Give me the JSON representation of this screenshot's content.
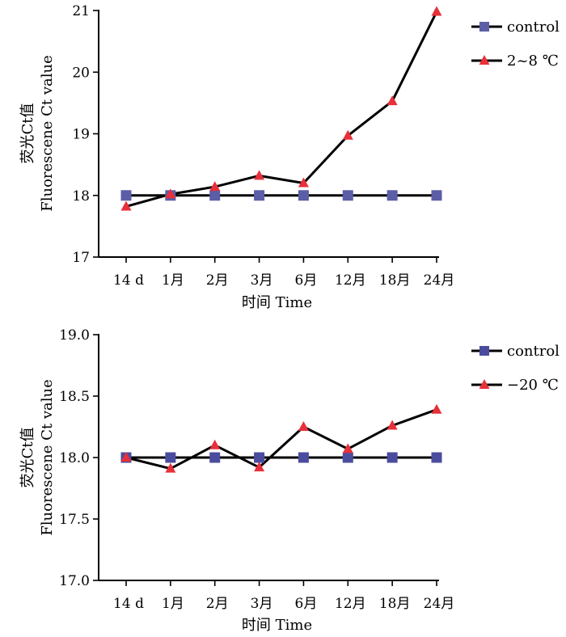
{
  "chart_data": [
    {
      "type": "line",
      "categories": [
        "14 d",
        "1月",
        "2月",
        "3月",
        "6月",
        "12月",
        "18月",
        "24月"
      ],
      "xlabel": "时间  Time",
      "ylabel_cn": "荧光Ct值",
      "ylabel_en": "Fluorescene Ct value",
      "ylim": [
        17,
        21
      ],
      "yticks": [
        "17",
        "18",
        "19",
        "20",
        "21"
      ],
      "grid": false,
      "legend_position": "top-right",
      "series": [
        {
          "name": "control",
          "marker": "square",
          "color": "#5b5ea6",
          "values": [
            18,
            18,
            18,
            18,
            18,
            18,
            18,
            18
          ]
        },
        {
          "name": "2~8 ℃",
          "marker": "triangle",
          "color": "#e8303a",
          "values": [
            17.82,
            18.02,
            18.14,
            18.32,
            18.2,
            18.97,
            19.53,
            20.98
          ]
        }
      ]
    },
    {
      "type": "line",
      "categories": [
        "14 d",
        "1月",
        "2月",
        "3月",
        "6月",
        "12月",
        "18月",
        "24月"
      ],
      "xlabel": "时间  Time",
      "ylabel_cn": "荧光Ct值",
      "ylabel_en": "Fluorescene Ct value",
      "ylim": [
        17.0,
        19.0
      ],
      "yticks": [
        "17.0",
        "17.5",
        "18.0",
        "18.5",
        "19.0"
      ],
      "grid": false,
      "legend_position": "top-right",
      "series": [
        {
          "name": "control",
          "marker": "square",
          "color": "#4a4c9e",
          "values": [
            18,
            18,
            18,
            18,
            18,
            18,
            18,
            18
          ]
        },
        {
          "name": "−20 ℃",
          "marker": "triangle",
          "color": "#e8303a",
          "values": [
            18.0,
            17.91,
            18.1,
            17.92,
            18.25,
            18.07,
            18.26,
            18.39
          ]
        }
      ]
    }
  ]
}
